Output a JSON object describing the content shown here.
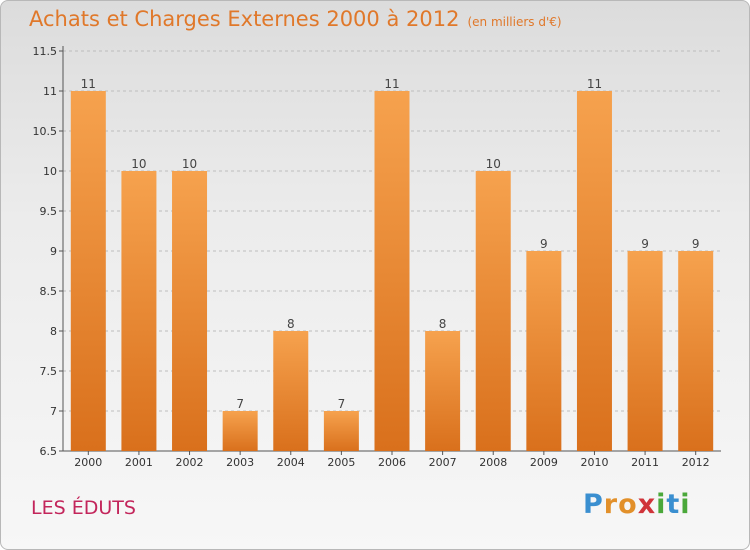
{
  "title": "Achats et Charges Externes 2000 à 2012",
  "subtitle": "(en milliers d'€)",
  "commune": "LES ÉDUTS",
  "logo": {
    "text": "Proxiti",
    "letters": [
      {
        "ch": "P",
        "color": "#3a8fd0"
      },
      {
        "ch": "r",
        "color": "#e2902a"
      },
      {
        "ch": "o",
        "color": "#e2902a"
      },
      {
        "ch": "x",
        "color": "#d0343a"
      },
      {
        "ch": "i",
        "color": "#4aa83a"
      },
      {
        "ch": "t",
        "color": "#3a8fd0"
      },
      {
        "ch": "i",
        "color": "#4aa83a"
      }
    ]
  },
  "colors": {
    "bar_light": "#f6a24e",
    "bar_dark": "#d9701c",
    "axis": "#555555",
    "grid": "#bdbdbd"
  },
  "chart_data": {
    "type": "bar",
    "title": "Achats et Charges Externes 2000 à 2012",
    "xlabel": "",
    "ylabel": "",
    "categories": [
      "2000",
      "2001",
      "2002",
      "2003",
      "2004",
      "2005",
      "2006",
      "2007",
      "2008",
      "2009",
      "2010",
      "2011",
      "2012"
    ],
    "values": [
      11,
      10,
      10,
      7,
      8,
      7,
      11,
      8,
      10,
      9,
      11,
      9,
      9
    ],
    "ylim": [
      6.5,
      11.5
    ],
    "yticks": [
      "6.5",
      "7",
      "7.5",
      "8",
      "8.5",
      "9",
      "9.5",
      "10",
      "10.5",
      "11",
      "11.5"
    ],
    "grid": true,
    "data_labels": true
  }
}
